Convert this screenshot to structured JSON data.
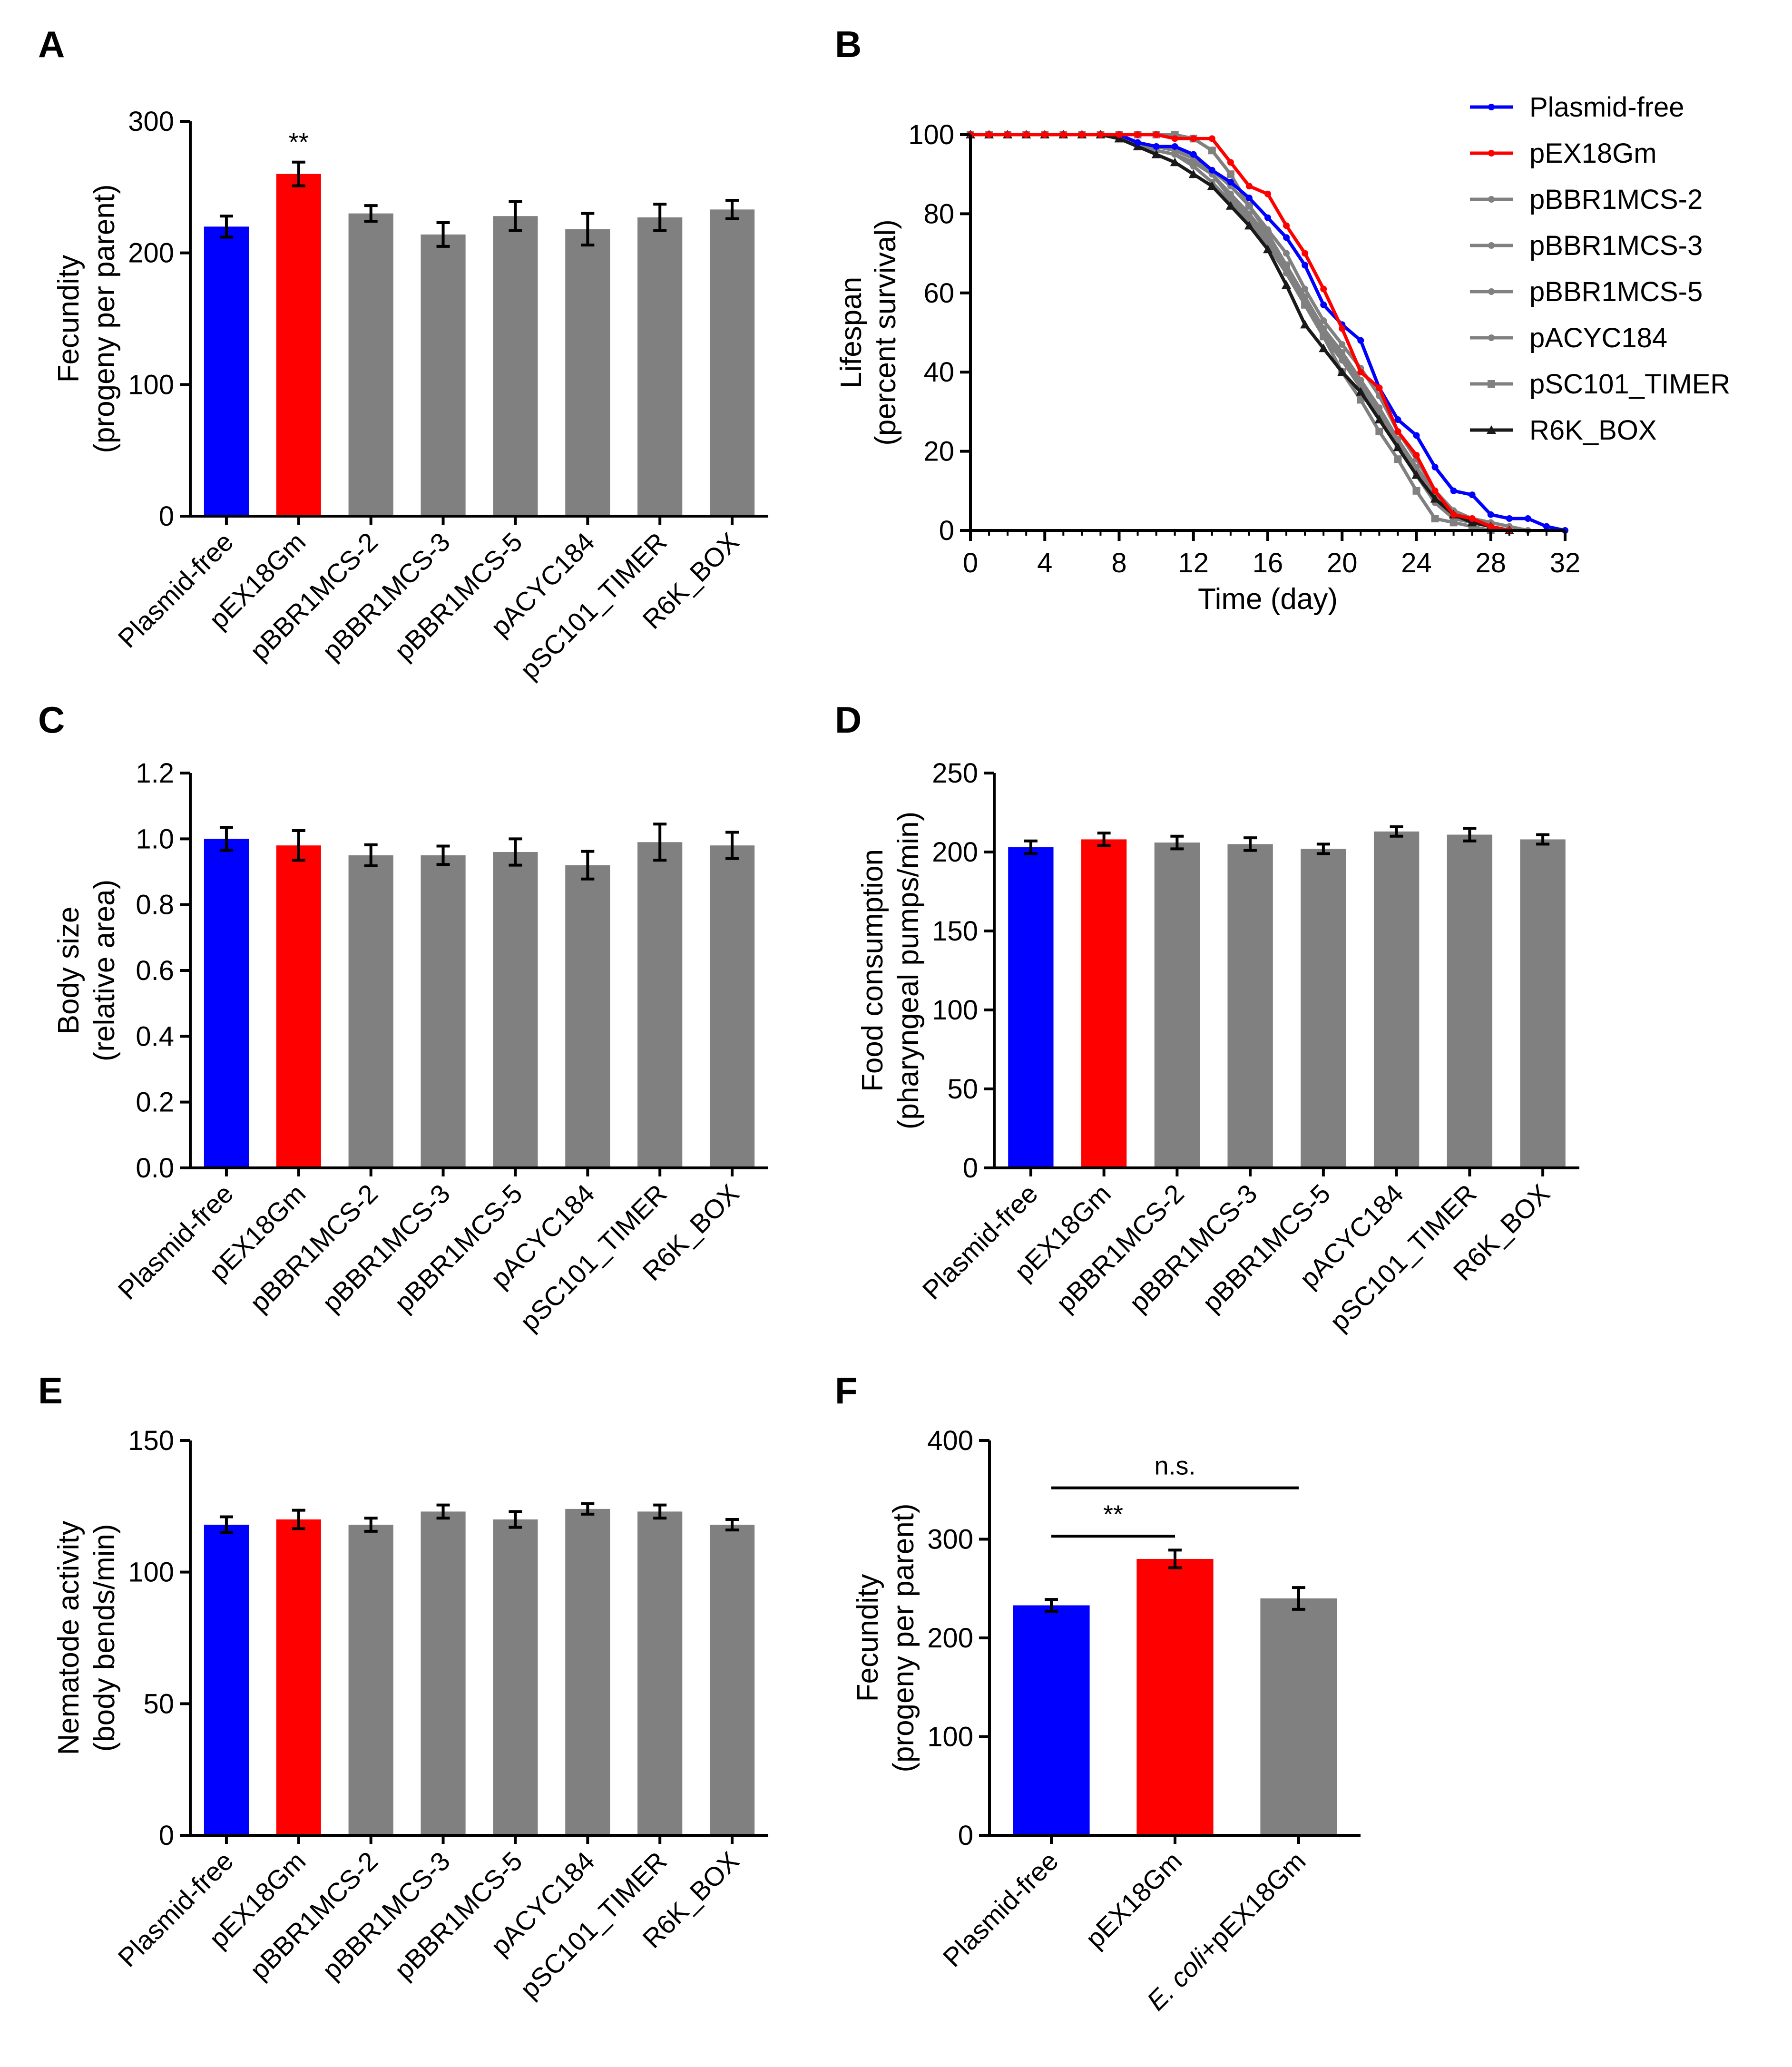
{
  "figure": {
    "panel_letters": [
      "A",
      "B",
      "C",
      "D",
      "E",
      "F"
    ]
  },
  "colors": {
    "plasmid_free": "#0000ff",
    "pex18gm": "#ff0000",
    "gray": "#808080",
    "black": "#1a1a1a"
  },
  "chart_data": [
    {
      "panel": "A",
      "type": "bar",
      "ylabel_line1": "Fecundity",
      "ylabel_line2": "(progeny per parent)",
      "ylim": [
        0,
        300
      ],
      "yticks": [
        0,
        100,
        200,
        300
      ],
      "categories": [
        "Plasmid-free",
        "pEX18Gm",
        "pBBR1MCS-2",
        "pBBR1MCS-3",
        "pBBR1MCS-5",
        "pACYC184",
        "pSC101_TIMER",
        "R6K_BOX"
      ],
      "values": [
        220,
        260,
        230,
        214,
        228,
        218,
        227,
        233
      ],
      "errors": [
        8,
        9,
        6,
        9,
        11,
        12,
        10,
        7
      ],
      "bar_colors": [
        "#0000ff",
        "#ff0000",
        "#808080",
        "#808080",
        "#808080",
        "#808080",
        "#808080",
        "#808080"
      ],
      "annotations": [
        {
          "category": "pEX18Gm",
          "text": "**"
        }
      ]
    },
    {
      "panel": "B",
      "type": "line",
      "ylabel_line1": "Lifespan",
      "ylabel_line2": "(percent survival)",
      "xlabel": "Time (day)",
      "xlim": [
        0,
        32
      ],
      "ylim": [
        0,
        100
      ],
      "xticks": [
        0,
        4,
        8,
        12,
        16,
        20,
        24,
        28,
        32
      ],
      "yticks": [
        0,
        20,
        40,
        60,
        80,
        100
      ],
      "series": [
        {
          "name": "Plasmid-free",
          "color": "#0000ff",
          "marker": "circle",
          "x": [
            0,
            1,
            2,
            3,
            4,
            5,
            6,
            7,
            8,
            9,
            10,
            11,
            12,
            13,
            14,
            15,
            16,
            17,
            18,
            19,
            20,
            21,
            22,
            23,
            24,
            25,
            26,
            27,
            28,
            29,
            30,
            31,
            32
          ],
          "y": [
            100,
            100,
            100,
            100,
            100,
            100,
            100,
            100,
            100,
            98,
            97,
            97,
            95,
            91,
            88,
            84,
            79,
            74,
            67,
            57,
            52,
            48,
            36,
            28,
            24,
            16,
            10,
            9,
            4,
            3,
            3,
            1,
            0
          ]
        },
        {
          "name": "pEX18Gm",
          "color": "#ff0000",
          "marker": "circle",
          "x": [
            0,
            1,
            2,
            3,
            4,
            5,
            6,
            7,
            8,
            9,
            10,
            11,
            12,
            13,
            14,
            15,
            16,
            17,
            18,
            19,
            20,
            21,
            22,
            23,
            24,
            25,
            26,
            27,
            28,
            29
          ],
          "y": [
            100,
            100,
            100,
            100,
            100,
            100,
            100,
            100,
            100,
            100,
            100,
            99,
            99,
            99,
            93,
            87,
            85,
            77,
            70,
            61,
            51,
            40,
            36,
            25,
            19,
            10,
            4,
            3,
            1,
            0
          ]
        },
        {
          "name": "pBBR1MCS-2",
          "color": "#808080",
          "marker": "circle",
          "x": [
            0,
            1,
            2,
            3,
            4,
            5,
            6,
            7,
            8,
            9,
            10,
            11,
            12,
            13,
            14,
            15,
            16,
            17,
            18,
            19,
            20,
            21,
            22,
            23,
            24,
            25,
            26,
            27,
            28,
            29,
            30
          ],
          "y": [
            100,
            100,
            100,
            100,
            100,
            100,
            100,
            100,
            99,
            98,
            97,
            96,
            95,
            91,
            87,
            82,
            76,
            70,
            61,
            53,
            47,
            41,
            34,
            25,
            18,
            10,
            5,
            3,
            2,
            1,
            0
          ]
        },
        {
          "name": "pBBR1MCS-3",
          "color": "#808080",
          "marker": "circle",
          "x": [
            0,
            1,
            2,
            3,
            4,
            5,
            6,
            7,
            8,
            9,
            10,
            11,
            12,
            13,
            14,
            15,
            16,
            17,
            18,
            19,
            20,
            21,
            22,
            23,
            24,
            25,
            26,
            27,
            28,
            29
          ],
          "y": [
            100,
            100,
            100,
            100,
            100,
            100,
            100,
            100,
            99,
            97,
            96,
            95,
            93,
            90,
            85,
            80,
            74,
            66,
            58,
            50,
            44,
            37,
            30,
            22,
            15,
            8,
            4,
            2,
            1,
            0
          ]
        },
        {
          "name": "pBBR1MCS-5",
          "color": "#808080",
          "marker": "circle",
          "x": [
            0,
            1,
            2,
            3,
            4,
            5,
            6,
            7,
            8,
            9,
            10,
            11,
            12,
            13,
            14,
            15,
            16,
            17,
            18,
            19,
            20,
            21,
            22,
            23,
            24,
            25,
            26,
            27,
            28,
            29
          ],
          "y": [
            100,
            100,
            100,
            100,
            100,
            100,
            100,
            100,
            99,
            98,
            96,
            95,
            92,
            88,
            83,
            78,
            72,
            65,
            57,
            49,
            43,
            36,
            29,
            21,
            14,
            7,
            3,
            2,
            1,
            0
          ]
        },
        {
          "name": "pACYC184",
          "color": "#808080",
          "marker": "circle",
          "x": [
            0,
            1,
            2,
            3,
            4,
            5,
            6,
            7,
            8,
            9,
            10,
            11,
            12,
            13,
            14,
            15,
            16,
            17,
            18,
            19,
            20,
            21,
            22,
            23,
            24,
            25,
            26,
            27,
            28,
            29
          ],
          "y": [
            100,
            100,
            100,
            100,
            100,
            100,
            100,
            100,
            99,
            98,
            97,
            96,
            94,
            90,
            84,
            79,
            73,
            67,
            59,
            51,
            45,
            38,
            31,
            23,
            16,
            9,
            4,
            2,
            1,
            0
          ]
        },
        {
          "name": "pSC101_TIMER",
          "color": "#808080",
          "marker": "square",
          "x": [
            0,
            1,
            2,
            3,
            4,
            5,
            6,
            7,
            8,
            9,
            10,
            11,
            12,
            13,
            14,
            15,
            16,
            17,
            18,
            19,
            20,
            21,
            22,
            23,
            24,
            25,
            26,
            27,
            28
          ],
          "y": [
            100,
            100,
            100,
            100,
            100,
            100,
            100,
            100,
            100,
            100,
            100,
            100,
            99,
            96,
            90,
            82,
            75,
            67,
            57,
            49,
            40,
            33,
            25,
            18,
            10,
            3,
            2,
            1,
            0
          ]
        },
        {
          "name": "R6K_BOX",
          "color": "#1a1a1a",
          "marker": "triangle",
          "x": [
            0,
            1,
            2,
            3,
            4,
            5,
            6,
            7,
            8,
            9,
            10,
            11,
            12,
            13,
            14,
            15,
            16,
            17,
            18,
            19,
            20,
            21,
            22,
            23,
            24,
            25,
            26,
            27,
            28,
            29
          ],
          "y": [
            100,
            100,
            100,
            100,
            100,
            100,
            100,
            100,
            99,
            97,
            95,
            93,
            90,
            87,
            82,
            77,
            71,
            62,
            52,
            46,
            40,
            35,
            28,
            21,
            14,
            8,
            4,
            2,
            1,
            0
          ]
        }
      ]
    },
    {
      "panel": "C",
      "type": "bar",
      "ylabel_line1": "Body size",
      "ylabel_line2": "(relative area)",
      "ylim": [
        0,
        1.2
      ],
      "yticks": [
        "0.0",
        "0.2",
        "0.4",
        "0.6",
        "0.8",
        "1.0",
        "1.2"
      ],
      "categories": [
        "Plasmid-free",
        "pEX18Gm",
        "pBBR1MCS-2",
        "pBBR1MCS-3",
        "pBBR1MCS-5",
        "pACYC184",
        "pSC101_TIMER",
        "R6K_BOX"
      ],
      "values": [
        1.0,
        0.98,
        0.95,
        0.95,
        0.96,
        0.92,
        0.99,
        0.98
      ],
      "errors": [
        0.035,
        0.045,
        0.032,
        0.028,
        0.04,
        0.042,
        0.055,
        0.04
      ],
      "bar_colors": [
        "#0000ff",
        "#ff0000",
        "#808080",
        "#808080",
        "#808080",
        "#808080",
        "#808080",
        "#808080"
      ]
    },
    {
      "panel": "D",
      "type": "bar",
      "ylabel_line1": "Food consumption",
      "ylabel_line2": "(pharyngeal pumps/min)",
      "ylim": [
        0,
        250
      ],
      "yticks": [
        0,
        50,
        100,
        150,
        200,
        250
      ],
      "categories": [
        "Plasmid-free",
        "pEX18Gm",
        "pBBR1MCS-2",
        "pBBR1MCS-3",
        "pBBR1MCS-5",
        "pACYC184",
        "pSC101_TIMER",
        "R6K_BOX"
      ],
      "values": [
        203,
        208,
        206,
        205,
        202,
        213,
        211,
        208
      ],
      "errors": [
        4,
        4,
        4,
        4,
        3,
        3,
        4,
        3
      ],
      "bar_colors": [
        "#0000ff",
        "#ff0000",
        "#808080",
        "#808080",
        "#808080",
        "#808080",
        "#808080",
        "#808080"
      ]
    },
    {
      "panel": "E",
      "type": "bar",
      "ylabel_line1": "Nematode activity",
      "ylabel_line2": "(body bends/min)",
      "ylim": [
        0,
        150
      ],
      "yticks": [
        0,
        50,
        100,
        150
      ],
      "categories": [
        "Plasmid-free",
        "pEX18Gm",
        "pBBR1MCS-2",
        "pBBR1MCS-3",
        "pBBR1MCS-5",
        "pACYC184",
        "pSC101_TIMER",
        "R6K_BOX"
      ],
      "values": [
        118,
        120,
        118,
        123,
        120,
        124,
        123,
        118
      ],
      "errors": [
        3,
        3.5,
        2.5,
        2.5,
        3,
        2,
        2.5,
        2
      ],
      "bar_colors": [
        "#0000ff",
        "#ff0000",
        "#808080",
        "#808080",
        "#808080",
        "#808080",
        "#808080",
        "#808080"
      ]
    },
    {
      "panel": "F",
      "type": "bar",
      "ylabel_line1": "Fecundity",
      "ylabel_line2": "(progeny per parent)",
      "ylim": [
        0,
        400
      ],
      "yticks": [
        0,
        100,
        200,
        300,
        400
      ],
      "categories": [
        "Plasmid-free",
        "pEX18Gm",
        "+pEX18Gm"
      ],
      "category_italic_prefix": [
        "",
        "",
        "E. coli"
      ],
      "values": [
        233,
        280,
        240
      ],
      "errors": [
        6,
        9,
        11
      ],
      "bar_colors": [
        "#0000ff",
        "#ff0000",
        "#808080"
      ],
      "comparisons": [
        {
          "from": 0,
          "to": 1,
          "text": "**",
          "y": 303
        },
        {
          "from": 0,
          "to": 2,
          "text": "n.s.",
          "y": 352
        }
      ]
    }
  ]
}
